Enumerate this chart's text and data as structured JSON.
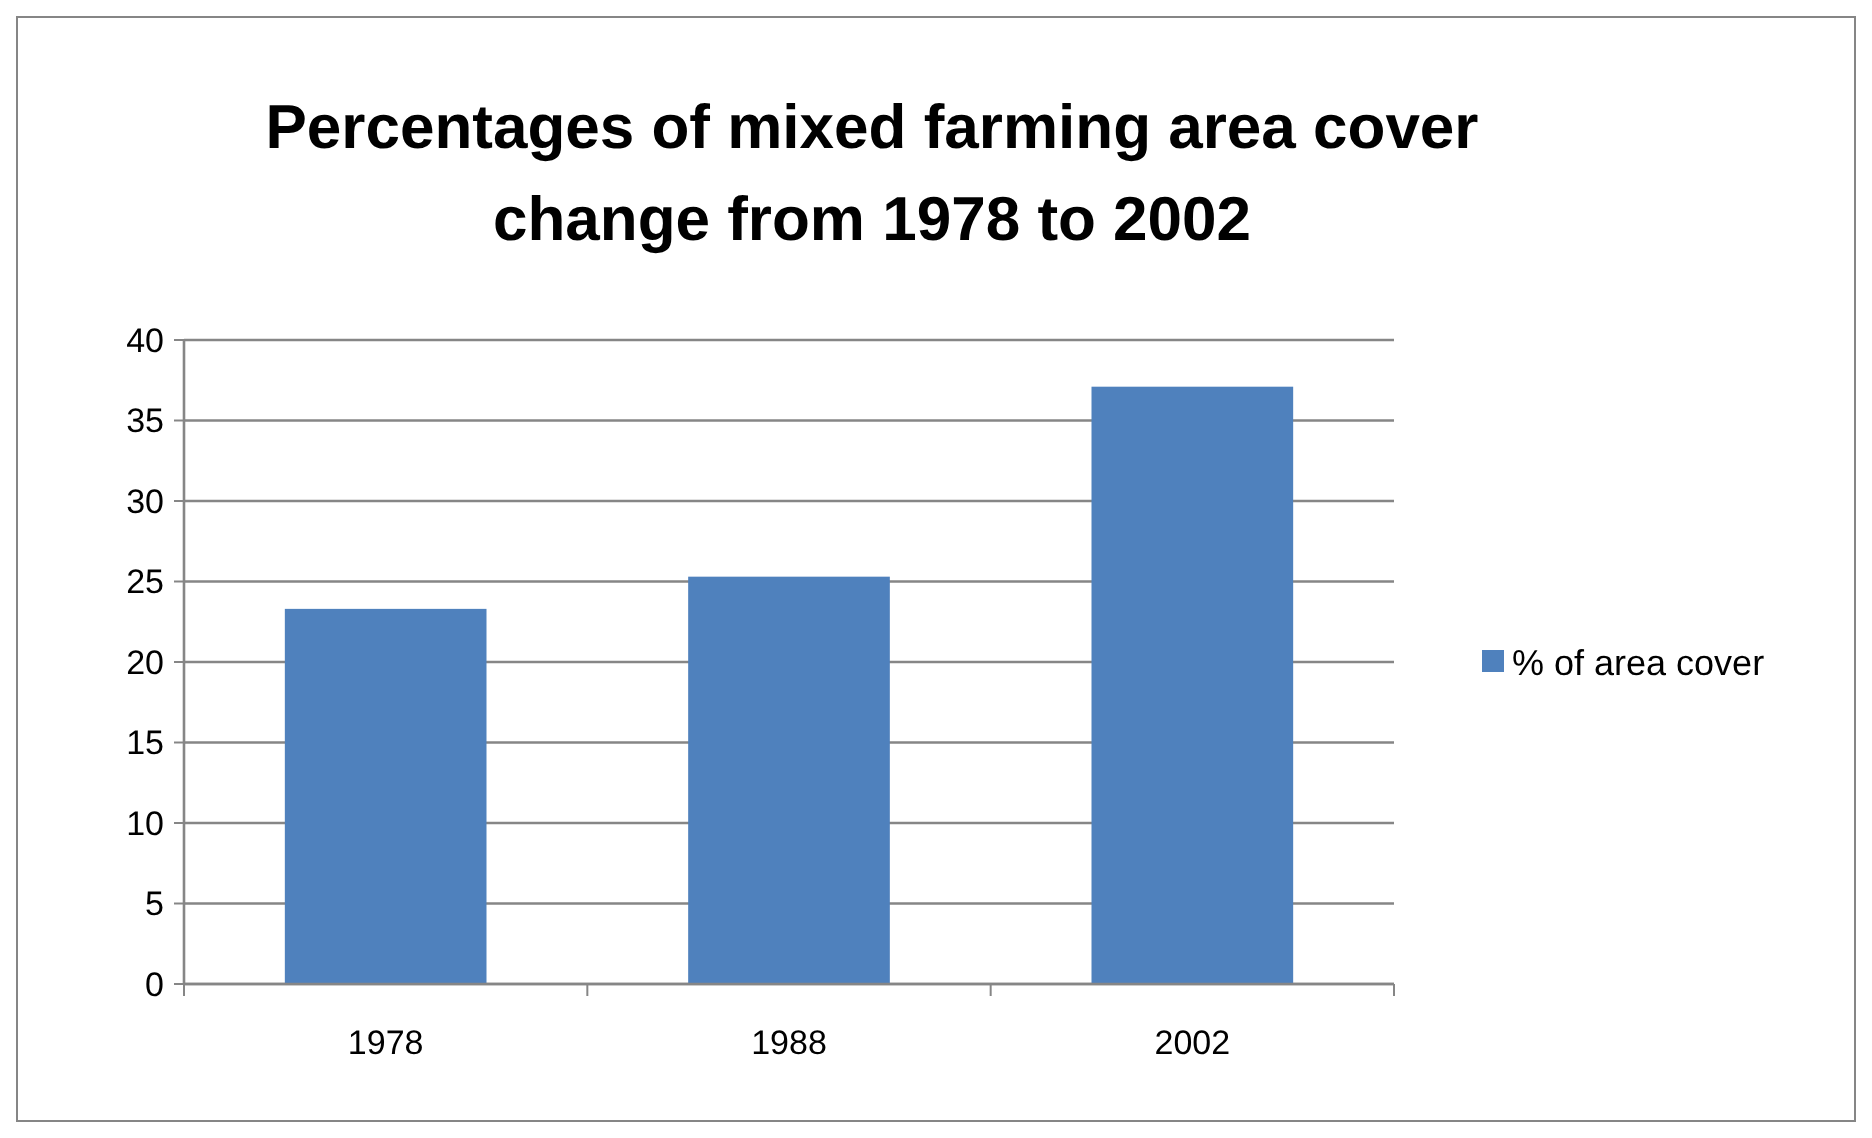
{
  "chart_data": {
    "type": "bar",
    "title": "Percentages of mixed farming area cover change from 1978 to 2002",
    "categories": [
      "1978",
      "1988",
      "2002"
    ],
    "series": [
      {
        "name": "% of area cover",
        "color": "#4f81bd",
        "values": [
          23.3,
          25.3,
          37.1
        ]
      }
    ],
    "ylim": [
      0,
      40
    ],
    "yticks": [
      0,
      5,
      10,
      15,
      20,
      25,
      30,
      35,
      40
    ],
    "grid": "y",
    "legend": "right"
  }
}
